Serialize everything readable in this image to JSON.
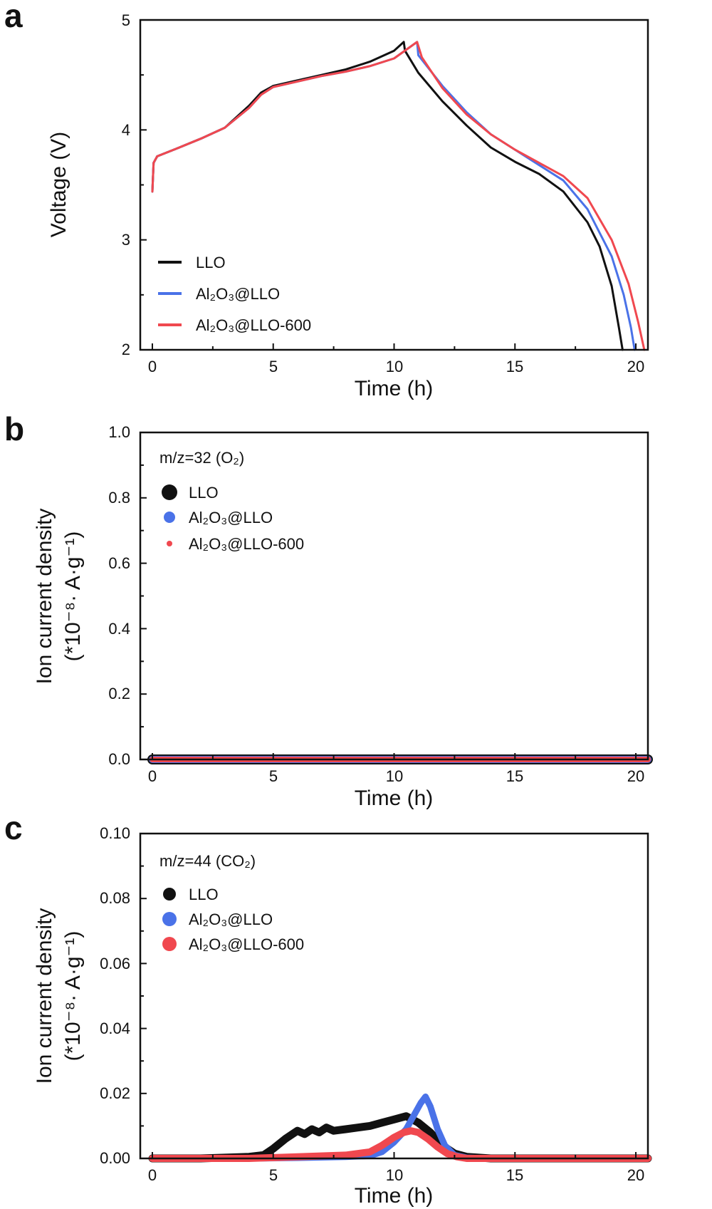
{
  "colors": {
    "LLO": "#111111",
    "Al2O3@LLO": "#4a72e8",
    "Al2O3@LLO-600": "#f0484f"
  },
  "chart_data": [
    {
      "id": "a",
      "panel_label": "a",
      "type": "line",
      "xlabel": "Time (h)",
      "ylabel": "Voltage (V)",
      "xlim": [
        -0.5,
        20.5
      ],
      "ylim": [
        2,
        5
      ],
      "xticks": [
        "0",
        "5",
        "10",
        "15",
        "20"
      ],
      "yticks": [
        "2",
        "3",
        "4",
        "5"
      ],
      "legend": {
        "entries": [
          "LLO",
          "Al₂O₃@LLO",
          "Al₂O₃@LLO-600"
        ],
        "placement": "bottom-left",
        "marker": "line"
      },
      "series": [
        {
          "name": "LLO",
          "color_key": "LLO",
          "x": [
            0,
            0.05,
            0.2,
            1,
            2,
            3,
            4,
            4.5,
            5,
            6,
            7,
            8,
            9,
            10,
            10.4,
            10.45,
            11,
            12,
            13,
            14,
            15,
            16,
            17,
            18,
            18.5,
            19,
            19.3,
            19.45
          ],
          "y": [
            3.44,
            3.7,
            3.76,
            3.83,
            3.92,
            4.02,
            4.22,
            4.34,
            4.4,
            4.45,
            4.5,
            4.55,
            4.62,
            4.72,
            4.8,
            4.72,
            4.52,
            4.26,
            4.04,
            3.84,
            3.71,
            3.6,
            3.44,
            3.16,
            2.94,
            2.58,
            2.2,
            2.0
          ]
        },
        {
          "name": "Al₂O₃@LLO",
          "color_key": "Al2O3@LLO",
          "x": [
            0,
            0.05,
            0.2,
            1,
            2,
            3,
            4,
            4.5,
            5,
            6,
            7,
            8,
            9,
            10,
            10.95,
            11.0,
            12,
            13,
            14,
            15,
            16,
            17,
            18,
            19,
            19.5,
            19.8,
            19.95
          ],
          "y": [
            3.44,
            3.7,
            3.76,
            3.83,
            3.92,
            4.02,
            4.2,
            4.32,
            4.39,
            4.44,
            4.49,
            4.53,
            4.58,
            4.65,
            4.8,
            4.68,
            4.4,
            4.16,
            3.96,
            3.82,
            3.68,
            3.54,
            3.28,
            2.85,
            2.5,
            2.2,
            2.0
          ]
        },
        {
          "name": "Al₂O₃@LLO-600",
          "color_key": "Al2O3@LLO-600",
          "x": [
            0,
            0.05,
            0.2,
            1,
            2,
            3,
            4,
            4.5,
            5,
            6,
            7,
            8,
            9,
            10,
            10.95,
            11.15,
            12,
            13,
            14,
            15,
            16,
            17,
            18,
            19,
            19.7,
            20.1,
            20.35
          ],
          "y": [
            3.44,
            3.7,
            3.76,
            3.83,
            3.92,
            4.02,
            4.2,
            4.32,
            4.39,
            4.44,
            4.49,
            4.53,
            4.58,
            4.65,
            4.8,
            4.66,
            4.38,
            4.14,
            3.96,
            3.82,
            3.7,
            3.58,
            3.38,
            3.0,
            2.6,
            2.25,
            2.0
          ]
        }
      ]
    },
    {
      "id": "b",
      "panel_label": "b",
      "type": "scatter",
      "xlabel": "Time (h)",
      "ylabel": "Ion current density",
      "ylabel2": "(*10⁻⁸· A·g⁻¹)",
      "note": "m/z=32 (O₂)",
      "xlim": [
        -0.5,
        20.5
      ],
      "ylim": [
        0,
        1.0
      ],
      "xticks": [
        "0",
        "5",
        "10",
        "15",
        "20"
      ],
      "yticks": [
        "0.0",
        "0.2",
        "0.4",
        "0.6",
        "0.8",
        "1.0"
      ],
      "legend": {
        "entries": [
          "LLO",
          "Al₂O₃@LLO",
          "Al₂O₃@LLO-600"
        ],
        "placement": "top-left",
        "marker": "dot"
      },
      "series": [
        {
          "name": "LLO",
          "color_key": "LLO",
          "x": [
            0,
            5,
            10,
            15,
            20.5
          ],
          "y": [
            0.0,
            0.0,
            0.0,
            0.0,
            0.0
          ]
        },
        {
          "name": "Al₂O₃@LLO",
          "color_key": "Al2O3@LLO",
          "x": [
            0,
            5,
            10,
            15,
            20.5
          ],
          "y": [
            0.0,
            0.0,
            0.0,
            0.0,
            0.0
          ]
        },
        {
          "name": "Al₂O₃@LLO-600",
          "color_key": "Al2O3@LLO-600",
          "x": [
            0,
            5,
            10,
            15,
            20.5
          ],
          "y": [
            0.0,
            0.0,
            0.0,
            0.0,
            0.0
          ]
        }
      ]
    },
    {
      "id": "c",
      "panel_label": "c",
      "type": "scatter",
      "xlabel": "Time (h)",
      "ylabel": "Ion current density",
      "ylabel2": "(*10⁻⁸· A·g⁻¹)",
      "note": "m/z=44 (CO₂)",
      "xlim": [
        -0.5,
        20.5
      ],
      "ylim": [
        0,
        0.1
      ],
      "xticks": [
        "0",
        "5",
        "10",
        "15",
        "20"
      ],
      "yticks": [
        "0.00",
        "0.02",
        "0.04",
        "0.06",
        "0.08",
        "0.10"
      ],
      "legend": {
        "entries": [
          "LLO",
          "Al₂O₃@LLO",
          "Al₂O₃@LLO-600"
        ],
        "placement": "top-left",
        "marker": "dot"
      },
      "series": [
        {
          "name": "LLO",
          "color_key": "LLO",
          "x": [
            0,
            2,
            4,
            4.6,
            5,
            5.5,
            6,
            6.3,
            6.6,
            6.9,
            7.2,
            7.5,
            8,
            8.5,
            9,
            9.5,
            10,
            10.5,
            11,
            11.5,
            12,
            12.5,
            13,
            14,
            15,
            20.5
          ],
          "y": [
            0.0,
            0.0,
            0.0005,
            0.001,
            0.003,
            0.006,
            0.0085,
            0.0075,
            0.009,
            0.008,
            0.0095,
            0.0085,
            0.009,
            0.0095,
            0.01,
            0.011,
            0.012,
            0.013,
            0.011,
            0.008,
            0.004,
            0.0015,
            0.0005,
            0.0,
            0.0,
            0.0
          ]
        },
        {
          "name": "Al₂O₃@LLO",
          "color_key": "Al2O3@LLO",
          "x": [
            0,
            4,
            6,
            8,
            9,
            9.5,
            10,
            10.5,
            10.8,
            11.1,
            11.3,
            11.5,
            11.8,
            12.1,
            12.5,
            13,
            14,
            20.5
          ],
          "y": [
            0.0,
            0.0,
            0.0002,
            0.0005,
            0.0008,
            0.002,
            0.005,
            0.009,
            0.013,
            0.017,
            0.019,
            0.016,
            0.009,
            0.004,
            0.001,
            0.0002,
            0.0,
            0.0
          ]
        },
        {
          "name": "Al₂O₃@LLO-600",
          "color_key": "Al2O3@LLO-600",
          "x": [
            0,
            4,
            6,
            8,
            9,
            9.5,
            10,
            10.4,
            10.7,
            11,
            11.4,
            11.8,
            12.2,
            12.6,
            13,
            14,
            20.5
          ],
          "y": [
            0.0,
            0.0,
            0.0005,
            0.001,
            0.002,
            0.004,
            0.0065,
            0.008,
            0.0085,
            0.008,
            0.006,
            0.0035,
            0.0015,
            0.0005,
            0.0,
            0.0,
            0.0
          ]
        }
      ]
    }
  ]
}
